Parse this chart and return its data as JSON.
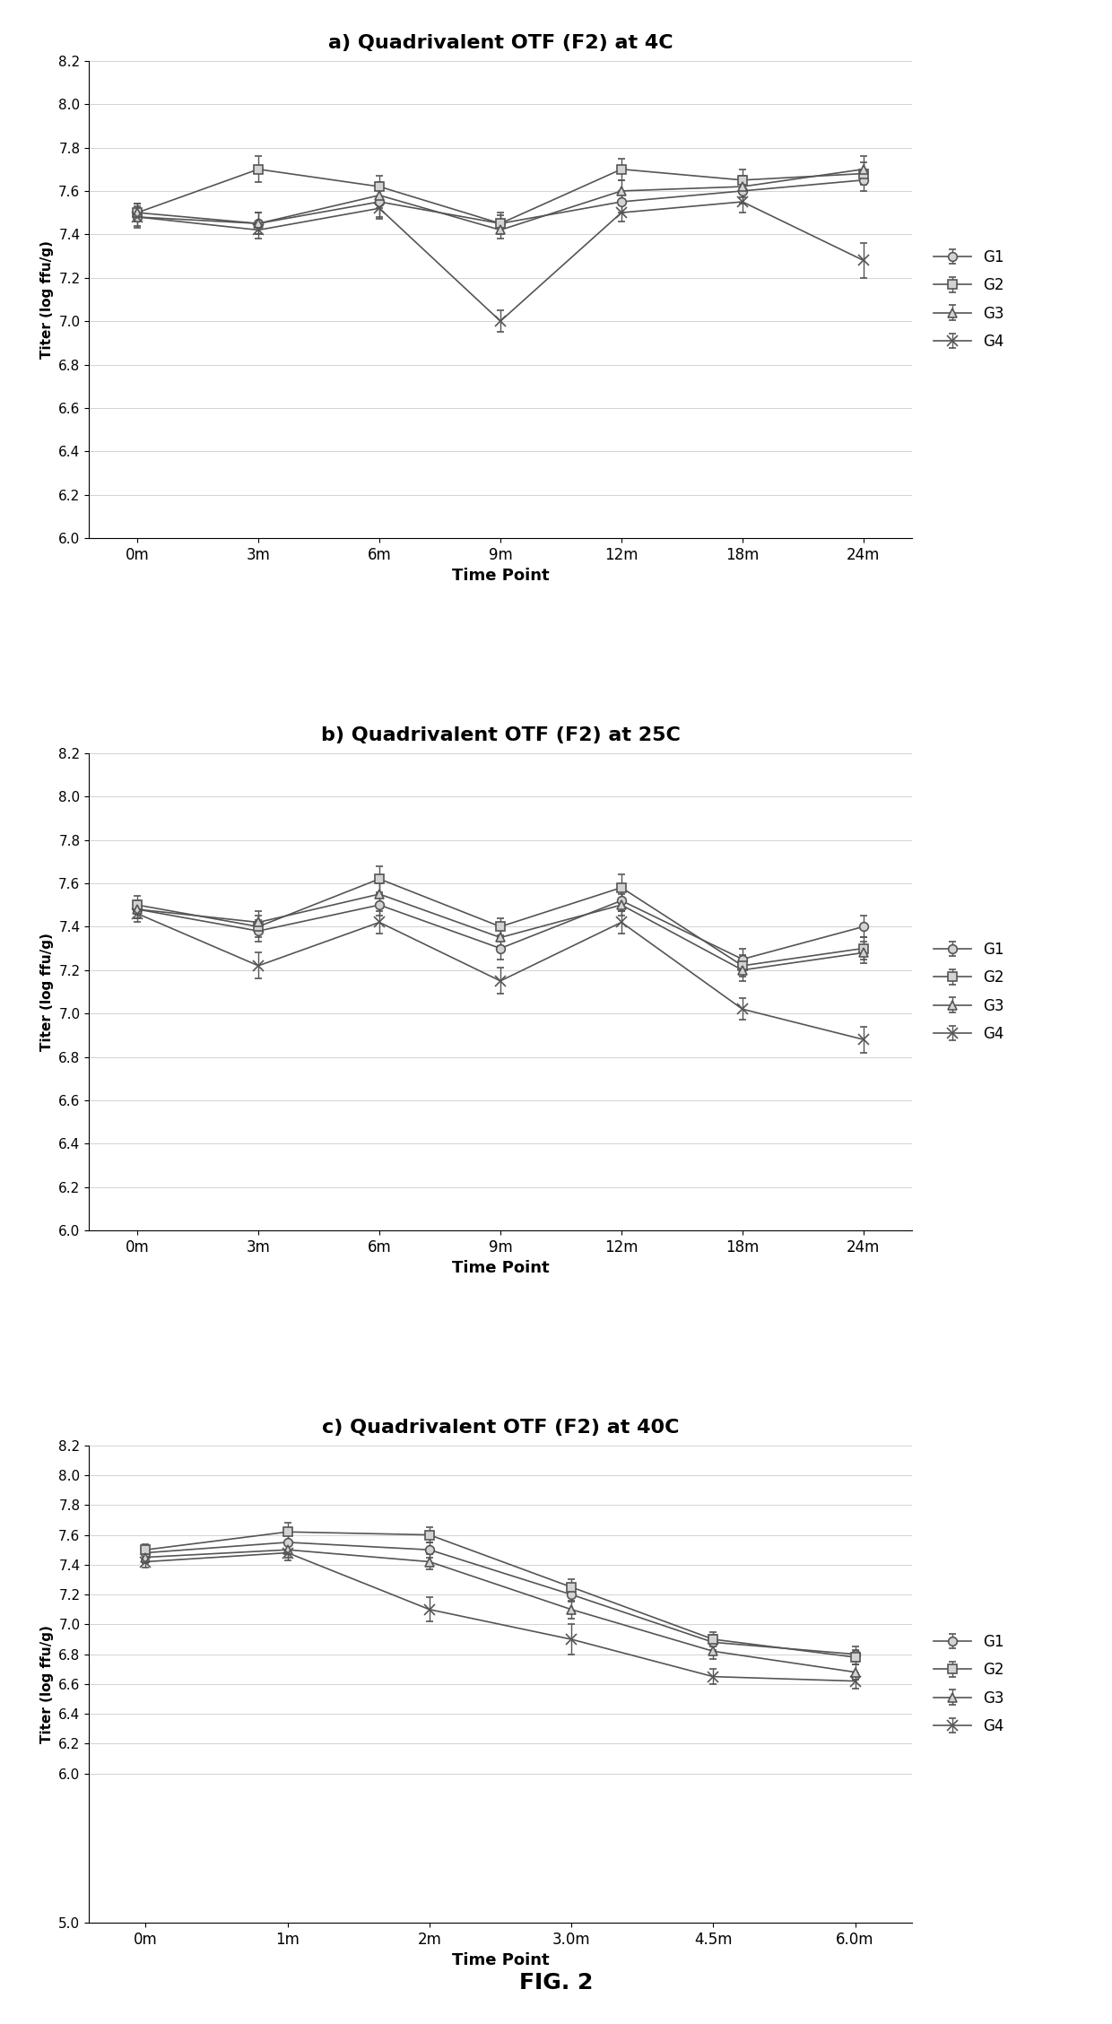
{
  "panel_a": {
    "title": "a) Quadrivalent OTF (F2) at 4C",
    "xticklabels": [
      "0m",
      "3m",
      "6m",
      "9m",
      "12m",
      "18m",
      "24m"
    ],
    "xlabel": "Time Point",
    "ylabel": "Titer (log ffu/g)",
    "ylim": [
      6.0,
      8.2
    ],
    "yticks": [
      6.0,
      6.2,
      6.4,
      6.6,
      6.8,
      7.0,
      7.2,
      7.4,
      7.6,
      7.8,
      8.0,
      8.2
    ],
    "series": {
      "G1": {
        "y": [
          7.48,
          7.45,
          7.55,
          7.45,
          7.55,
          7.6,
          7.65
        ],
        "yerr": [
          0.05,
          0.05,
          0.07,
          0.05,
          0.05,
          0.06,
          0.05
        ]
      },
      "G2": {
        "y": [
          7.5,
          7.7,
          7.62,
          7.45,
          7.7,
          7.65,
          7.68
        ],
        "yerr": [
          0.04,
          0.06,
          0.05,
          0.04,
          0.05,
          0.05,
          0.05
        ]
      },
      "G3": {
        "y": [
          7.5,
          7.45,
          7.58,
          7.42,
          7.6,
          7.62,
          7.7
        ],
        "yerr": [
          0.04,
          0.05,
          0.06,
          0.04,
          0.05,
          0.05,
          0.06
        ]
      },
      "G4": {
        "y": [
          7.48,
          7.42,
          7.52,
          7.0,
          7.5,
          7.55,
          7.28
        ],
        "yerr": [
          0.04,
          0.04,
          0.05,
          0.05,
          0.04,
          0.05,
          0.08
        ]
      }
    }
  },
  "panel_b": {
    "title": "b) Quadrivalent OTF (F2) at 25C",
    "xticklabels": [
      "0m",
      "3m",
      "6m",
      "9m",
      "12m",
      "18m",
      "24m"
    ],
    "xlabel": "Time Point",
    "ylabel": "Titer (log ffu/g)",
    "ylim": [
      6.0,
      8.2
    ],
    "yticks": [
      6.0,
      6.2,
      6.4,
      6.6,
      6.8,
      7.0,
      7.2,
      7.4,
      7.6,
      7.8,
      8.0,
      8.2
    ],
    "series": {
      "G1": {
        "y": [
          7.48,
          7.38,
          7.5,
          7.3,
          7.52,
          7.25,
          7.4
        ],
        "yerr": [
          0.04,
          0.05,
          0.05,
          0.05,
          0.05,
          0.05,
          0.05
        ]
      },
      "G2": {
        "y": [
          7.5,
          7.4,
          7.62,
          7.4,
          7.58,
          7.22,
          7.3
        ],
        "yerr": [
          0.04,
          0.05,
          0.06,
          0.04,
          0.06,
          0.05,
          0.05
        ]
      },
      "G3": {
        "y": [
          7.48,
          7.42,
          7.55,
          7.35,
          7.5,
          7.2,
          7.28
        ],
        "yerr": [
          0.04,
          0.05,
          0.05,
          0.04,
          0.05,
          0.05,
          0.05
        ]
      },
      "G4": {
        "y": [
          7.46,
          7.22,
          7.42,
          7.15,
          7.42,
          7.02,
          6.88
        ],
        "yerr": [
          0.04,
          0.06,
          0.05,
          0.06,
          0.05,
          0.05,
          0.06
        ]
      }
    }
  },
  "panel_c": {
    "title": "c) Quadrivalent OTF (F2) at 40C",
    "xticklabels": [
      "0m",
      "1m",
      "2m",
      "3.0m",
      "4.5m",
      "6.0m"
    ],
    "xlabel": "Time Point",
    "ylabel": "Titer (log ffu/g)",
    "ylim": [
      5.0,
      8.2
    ],
    "yticks": [
      5.0,
      6.0,
      6.2,
      6.4,
      6.6,
      6.8,
      7.0,
      7.2,
      7.4,
      7.6,
      7.8,
      8.0,
      8.2
    ],
    "series": {
      "G1": {
        "y": [
          7.48,
          7.55,
          7.5,
          7.2,
          6.88,
          6.8
        ],
        "yerr": [
          0.04,
          0.05,
          0.05,
          0.05,
          0.05,
          0.05
        ]
      },
      "G2": {
        "y": [
          7.5,
          7.62,
          7.6,
          7.25,
          6.9,
          6.78
        ],
        "yerr": [
          0.04,
          0.06,
          0.05,
          0.05,
          0.05,
          0.05
        ]
      },
      "G3": {
        "y": [
          7.45,
          7.5,
          7.42,
          7.1,
          6.82,
          6.68
        ],
        "yerr": [
          0.04,
          0.05,
          0.05,
          0.06,
          0.05,
          0.05
        ]
      },
      "G4": {
        "y": [
          7.42,
          7.48,
          7.1,
          6.9,
          6.65,
          6.62
        ],
        "yerr": [
          0.04,
          0.05,
          0.08,
          0.1,
          0.05,
          0.05
        ]
      }
    }
  },
  "line_color": "#555555",
  "legend_labels": [
    "G1",
    "G2",
    "G3",
    "G4"
  ],
  "markers": [
    "o",
    "s",
    "^",
    "x"
  ],
  "fig_caption": "FIG. 2"
}
